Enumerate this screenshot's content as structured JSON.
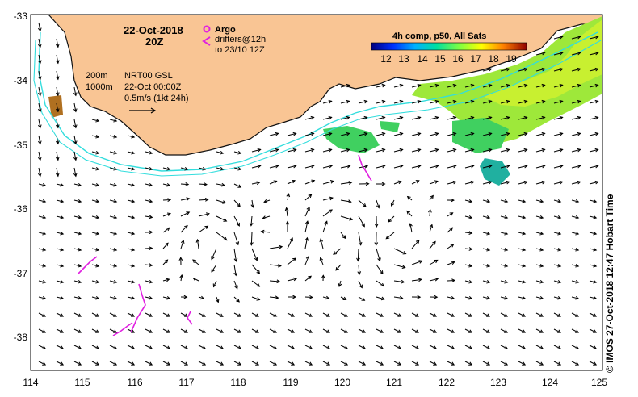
{
  "map": {
    "date": "22-Oct-2018",
    "time": "20Z",
    "legend": {
      "argo_label": "Argo",
      "drifters_label": "drifters@12h",
      "drifters_sub": "to 23/10 12Z",
      "argo_color": "#e020e0",
      "drifter_color": "#e020e0"
    },
    "isobaths": {
      "depth1": "200m",
      "depth2": "1000m",
      "color": "#33dddd"
    },
    "currents": {
      "product": "NRT00 GSL",
      "date": "22-Oct 00:00Z",
      "scale_label": "0.5m/s (1kt 24h)"
    },
    "sst": {
      "title": "4h comp, p50, All Sats",
      "ticks": [
        "12",
        "13",
        "14",
        "15",
        "16",
        "17",
        "18",
        "19"
      ]
    },
    "credit": "© IMOS 27-Oct-2018 12:47 Hobart Time",
    "axes": {
      "lon_ticks": [
        "114",
        "115",
        "116",
        "117",
        "118",
        "119",
        "120",
        "121",
        "122",
        "123",
        "124",
        "125"
      ],
      "lat_ticks": [
        "-33",
        "-34",
        "-35",
        "-36",
        "-37",
        "-38"
      ]
    },
    "colors": {
      "land": "#f9c594",
      "coast": "#111111",
      "background": "#ffffff"
    }
  }
}
